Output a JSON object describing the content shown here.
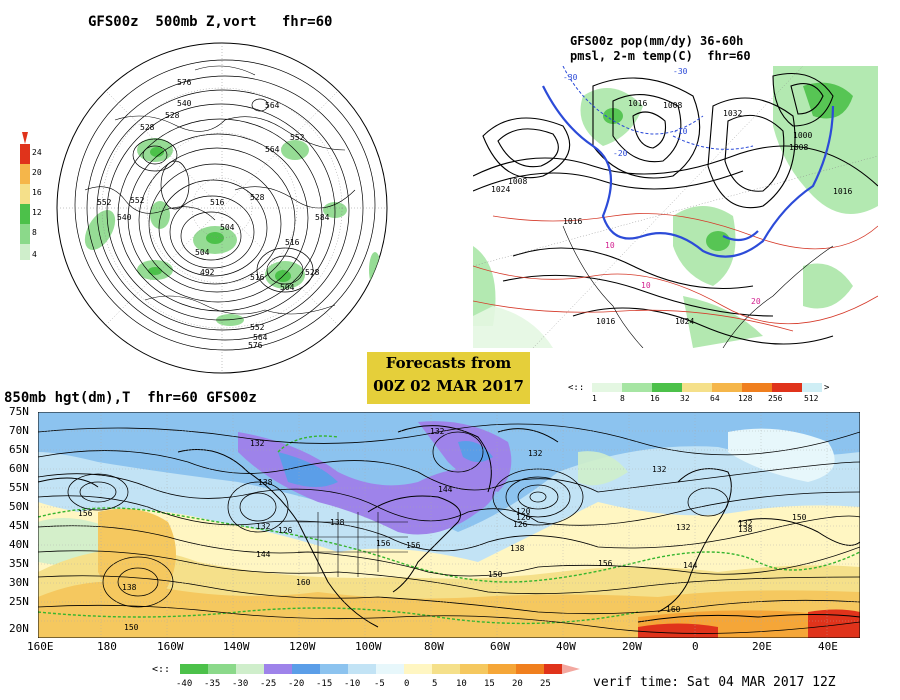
{
  "panels": {
    "top_left": {
      "title": "GFS00z  500mb Z,vort   fhr=60",
      "colorbar": {
        "ticks": [
          "24",
          "20",
          "16",
          "12",
          "8",
          "4"
        ],
        "colors": [
          "#e0331b",
          "#f5b64a",
          "#f5e08a",
          "#4cc14a",
          "#8bd98a",
          "#cfeecb"
        ]
      },
      "contour_labels": [
        "576",
        "552",
        "540",
        "528",
        "564",
        "540",
        "528",
        "516",
        "504",
        "528",
        "552",
        "564",
        "516",
        "504",
        "492",
        "516",
        "528",
        "504",
        "552",
        "564",
        "576",
        "552",
        "584"
      ]
    },
    "top_right": {
      "title_line1": "GFS00z pop(mm/dy) 36-60h",
      "title_line2": "pmsl, 2-m temp(C)  fhr=60",
      "colorbar": {
        "ticks": [
          "1",
          "8",
          "16",
          "32",
          "64",
          "128",
          "256",
          "512"
        ],
        "colors": [
          "#e4f7e2",
          "#a6e5a3",
          "#4cc14a",
          "#f5e08a",
          "#f5b64a",
          "#f07f1e",
          "#e0331b",
          "#cfeef5"
        ]
      },
      "labels": [
        "1024",
        "1008",
        "1016",
        "1016",
        "1008",
        "1032",
        "1000",
        "1008",
        "1016",
        "1016",
        "1024",
        "-30",
        "-30",
        "-20",
        "-10",
        "10",
        "10",
        "20"
      ]
    },
    "bottom": {
      "title": "850mb hgt(dm),T  fhr=60 GFS00z",
      "lat_labels": [
        "75N",
        "70N",
        "65N",
        "60N",
        "55N",
        "50N",
        "45N",
        "40N",
        "35N",
        "30N",
        "25N",
        "20N"
      ],
      "lon_labels": [
        "160E",
        "180",
        "160W",
        "140W",
        "120W",
        "100W",
        "80W",
        "60W",
        "40W",
        "20W",
        "0",
        "20E",
        "40E"
      ],
      "colorbar": {
        "ticks": [
          "-40",
          "-35",
          "-30",
          "-25",
          "-20",
          "-15",
          "-10",
          "-5",
          "0",
          "5",
          "10",
          "15",
          "20",
          "25"
        ],
        "colors": [
          "#4cc14a",
          "#8bd98a",
          "#cfeecb",
          "#9e83ea",
          "#5b9ee8",
          "#8cc3ef",
          "#c2e3f5",
          "#e7f7fb",
          "#fff6c2",
          "#f5e08a",
          "#f5c85f",
          "#f5a638",
          "#f07f1e",
          "#e0331b"
        ]
      },
      "contour_labels": [
        "132",
        "132",
        "138",
        "156",
        "132",
        "144",
        "138",
        "132",
        "126",
        "156",
        "144",
        "138",
        "132",
        "120",
        "126",
        "138",
        "150",
        "156",
        "132",
        "144",
        "150",
        "126",
        "132",
        "138",
        "150",
        "160",
        "160",
        "156"
      ],
      "verif_time": "verif time: Sat 04 MAR 2017 12Z"
    }
  },
  "forecast_box": {
    "line1": "Forecasts from",
    "line2": "00Z 02 MAR 2017"
  }
}
